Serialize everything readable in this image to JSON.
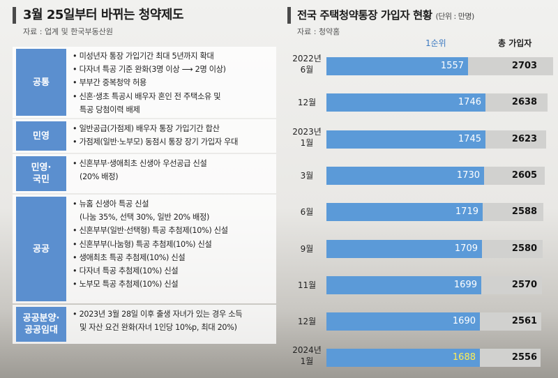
{
  "left_panel": {
    "title": "3월 25일부터 바뀌는 청약제도",
    "source": "자료 : 업계 및 한국부동산원",
    "sections": [
      {
        "tag": [
          "공통"
        ],
        "lines": [
          {
            "bullet": true,
            "text": "미성년자 통장 가입기간 최대 5년까지 확대"
          },
          {
            "bullet": true,
            "text": "다자녀 특공 기준 완화(3명 이상 ⟶ 2명 이상)"
          },
          {
            "bullet": true,
            "text": "부부간 중복청약 허용"
          },
          {
            "bullet": true,
            "text": "신혼·생초 특공시 배우자 혼인 전 주택소유 및"
          },
          {
            "bullet": false,
            "text": "특공 당첨이력 배제"
          }
        ]
      },
      {
        "tag": [
          "민영"
        ],
        "lines": [
          {
            "bullet": true,
            "text": "일반공급(가점제) 배우자 통장 가입기간 합산"
          },
          {
            "bullet": true,
            "text": "가점제(일반·노부모) 동점시 통장 장기 가입자 우대"
          }
        ]
      },
      {
        "tag": [
          "민영·",
          "국민"
        ],
        "lines": [
          {
            "bullet": true,
            "text": "신혼부부·생애최초 신생아 우선공급 신설"
          },
          {
            "bullet": false,
            "text": "(20% 배정)"
          }
        ]
      },
      {
        "tag": [
          "공공"
        ],
        "lines": [
          {
            "bullet": true,
            "text": "뉴홈 신생아 특공 신설"
          },
          {
            "bullet": false,
            "text": "(나눔 35%, 선택 30%, 일반 20% 배정)"
          },
          {
            "bullet": true,
            "text": "신혼부부(일반·선택형) 특공 추첨제(10%) 신설"
          },
          {
            "bullet": true,
            "text": "신혼부부(나눔형) 특공 추첨제(10%) 신설"
          },
          {
            "bullet": true,
            "text": "생애최초 특공 추첨제(10%) 신설"
          },
          {
            "bullet": true,
            "text": "다자녀 특공 추첨제(10%) 신설"
          },
          {
            "bullet": true,
            "text": "노부모 특공 추첨제(10%) 신설"
          }
        ]
      },
      {
        "tag": [
          "공공분양·",
          "공공임대"
        ],
        "lines": [
          {
            "bullet": true,
            "text": "2023년 3월 28일 이후 출생 자녀가 있는 경우 소득"
          },
          {
            "bullet": false,
            "text": "및 자산 요건 완화(자녀 1인당 10%p, 최대 20%)"
          }
        ]
      }
    ]
  },
  "right_panel": {
    "title": "전국 주택청약통장 가입자 현황",
    "unit": "(단위 : 만명)",
    "source": "자료 : 청약홈"
  },
  "chart_data": {
    "type": "bar",
    "orientation": "horizontal",
    "title": "전국 주택청약통장 가입자 현황",
    "unit": "만명",
    "categories": [
      [
        "2022년",
        "6월"
      ],
      [
        "12월"
      ],
      [
        "2023년",
        "1월"
      ],
      [
        "3월"
      ],
      [
        "6월"
      ],
      [
        "9월"
      ],
      [
        "11월"
      ],
      [
        "12월"
      ],
      [
        "2024년",
        "1월"
      ]
    ],
    "series": [
      {
        "name": "1순위",
        "values": [
          1557,
          1746,
          1745,
          1730,
          1719,
          1709,
          1699,
          1690,
          1688
        ],
        "color": "#5b9ad8"
      },
      {
        "name": "총 가입자",
        "values": [
          2703,
          2638,
          2623,
          2605,
          2588,
          2580,
          2570,
          2561,
          2556
        ],
        "color": "#d1d1cf"
      }
    ],
    "highlight_color": "#ffee55"
  }
}
